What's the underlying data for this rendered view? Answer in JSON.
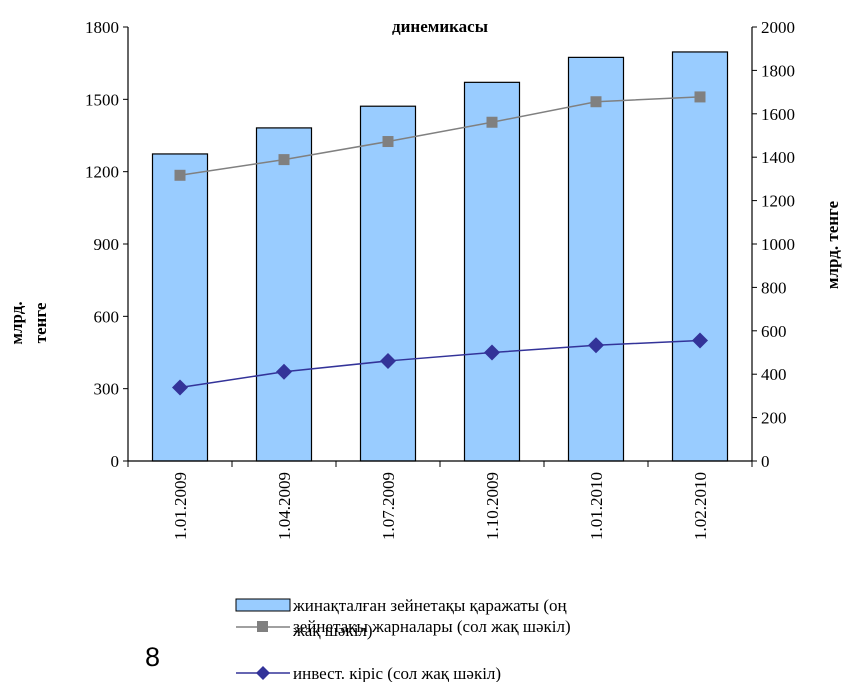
{
  "page_number": "8",
  "chart_data": {
    "type": "bar",
    "title": "динемикасы",
    "categories": [
      "1.01.2009",
      "1.04.2009",
      "1.07.2009",
      "1.10.2009",
      "1.01.2010",
      "1.02.2010"
    ],
    "y_left": {
      "label_line1": "млрд.",
      "label_line2": "тенге",
      "range": [
        0,
        1800
      ],
      "ticks": [
        "0",
        "300",
        "600",
        "900",
        "1200",
        "1500",
        "1800"
      ]
    },
    "y_right": {
      "label": "млрд. тенге",
      "range": [
        0,
        2000
      ],
      "ticks": [
        "0",
        "200",
        "400",
        "600",
        "800",
        "1000",
        "1200",
        "1400",
        "1600",
        "1800",
        "2000"
      ]
    },
    "series": [
      {
        "name": "жинақталған зейнетақы қаражаты (оң жақ шәкіл)",
        "kind": "bar",
        "axis": "right",
        "values": [
          1415,
          1535,
          1635,
          1745,
          1860,
          1885
        ],
        "color": "#99ccff"
      },
      {
        "name": "зейнетақы жарналары (сол жақ шәкіл)",
        "kind": "line",
        "axis": "left",
        "marker": "square",
        "values": [
          1185,
          1250,
          1325,
          1405,
          1490,
          1510
        ],
        "color": "#808080"
      },
      {
        "name": "инвест. кіріс (сол жақ шәкіл)",
        "kind": "line",
        "axis": "left",
        "marker": "diamond",
        "values": [
          305,
          370,
          415,
          450,
          480,
          500
        ],
        "color": "#333399"
      }
    ],
    "legend": {
      "bar_line1": "жинақталған зейнетақы қаражаты (оң",
      "bar_line2": "жақ шәкіл)",
      "line1": "зейнетақы жарналары (сол жақ шәкіл)",
      "line2": "инвест. кіріс (сол жақ шәкіл)"
    }
  }
}
